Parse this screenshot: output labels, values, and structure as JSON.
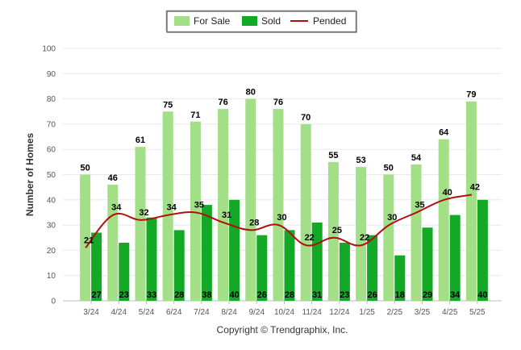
{
  "chart_data": {
    "type": "bar",
    "categories": [
      "3/24",
      "4/24",
      "5/24",
      "6/24",
      "7/24",
      "8/24",
      "9/24",
      "10/24",
      "11/24",
      "12/24",
      "1/25",
      "2/25",
      "3/25",
      "4/25",
      "5/25"
    ],
    "series": [
      {
        "name": "For Sale",
        "type": "bar",
        "color": "#a3df87",
        "values": [
          50,
          46,
          61,
          75,
          71,
          76,
          80,
          76,
          70,
          55,
          53,
          50,
          54,
          64,
          79
        ]
      },
      {
        "name": "Sold",
        "type": "bar",
        "color": "#14a827",
        "values": [
          27,
          23,
          33,
          28,
          38,
          40,
          26,
          28,
          31,
          23,
          26,
          18,
          29,
          34,
          40
        ]
      },
      {
        "name": "Pended",
        "type": "line",
        "color": "#b01010",
        "values": [
          21,
          34,
          32,
          34,
          35,
          31,
          28,
          30,
          22,
          25,
          22,
          30,
          35,
          40,
          42
        ]
      }
    ],
    "title": "",
    "xlabel": "",
    "ylabel": "Number of Homes",
    "ylim": [
      0,
      100
    ],
    "yticks": [
      0,
      10,
      20,
      30,
      40,
      50,
      60,
      70,
      80,
      90,
      100
    ],
    "grid": true,
    "legend": "top-center",
    "footer": "Copyright © Trendgraphix, Inc."
  }
}
